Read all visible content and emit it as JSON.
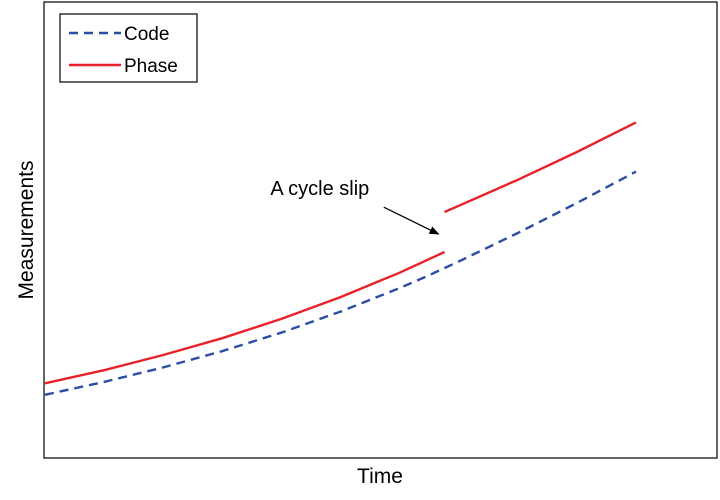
{
  "chart_data": {
    "type": "line",
    "title": "",
    "xlabel": "Time",
    "ylabel": "Measurements",
    "xlim": [
      0,
      100
    ],
    "ylim": [
      0,
      100
    ],
    "grid": false,
    "ticks_shown": false,
    "legend": {
      "placement": "top-left",
      "entries": [
        {
          "label": "Code",
          "style": "dashed",
          "color": "#2B4EA2"
        },
        {
          "label": "Phase",
          "style": "solid",
          "color": "#E8212B"
        }
      ]
    },
    "series": [
      {
        "name": "Code",
        "style": "dashed",
        "color": "#2B4EA2",
        "segments": [
          {
            "x": [
              0,
              10,
              20,
              30,
              40,
              50,
              60,
              65,
              70,
              80,
              90,
              100
            ],
            "y": [
              9.0,
              13.6,
              18.8,
              24.6,
              31.2,
              38.7,
              47.1,
              51.7,
              56.6,
              66.8,
              77.5,
              88.7
            ]
          }
        ]
      },
      {
        "name": "Phase",
        "style": "solid",
        "color": "#E8212B",
        "segments": [
          {
            "x": [
              0,
              10,
              20,
              30,
              40,
              50,
              60,
              67.6
            ],
            "y": [
              13.1,
              17.8,
              23.2,
              29.2,
              36.1,
              43.9,
              52.6,
              60.0
            ]
          },
          {
            "x": [
              67.6,
              70,
              80,
              90,
              100
            ],
            "y": [
              74.3,
              76.5,
              85.8,
              95.7,
              106.3
            ]
          }
        ]
      }
    ],
    "annotations": [
      {
        "text": "A cycle slip",
        "text_at": [
          46.5,
          80.3
        ],
        "arrow_to": [
          66.6,
          66.4
        ]
      }
    ]
  }
}
